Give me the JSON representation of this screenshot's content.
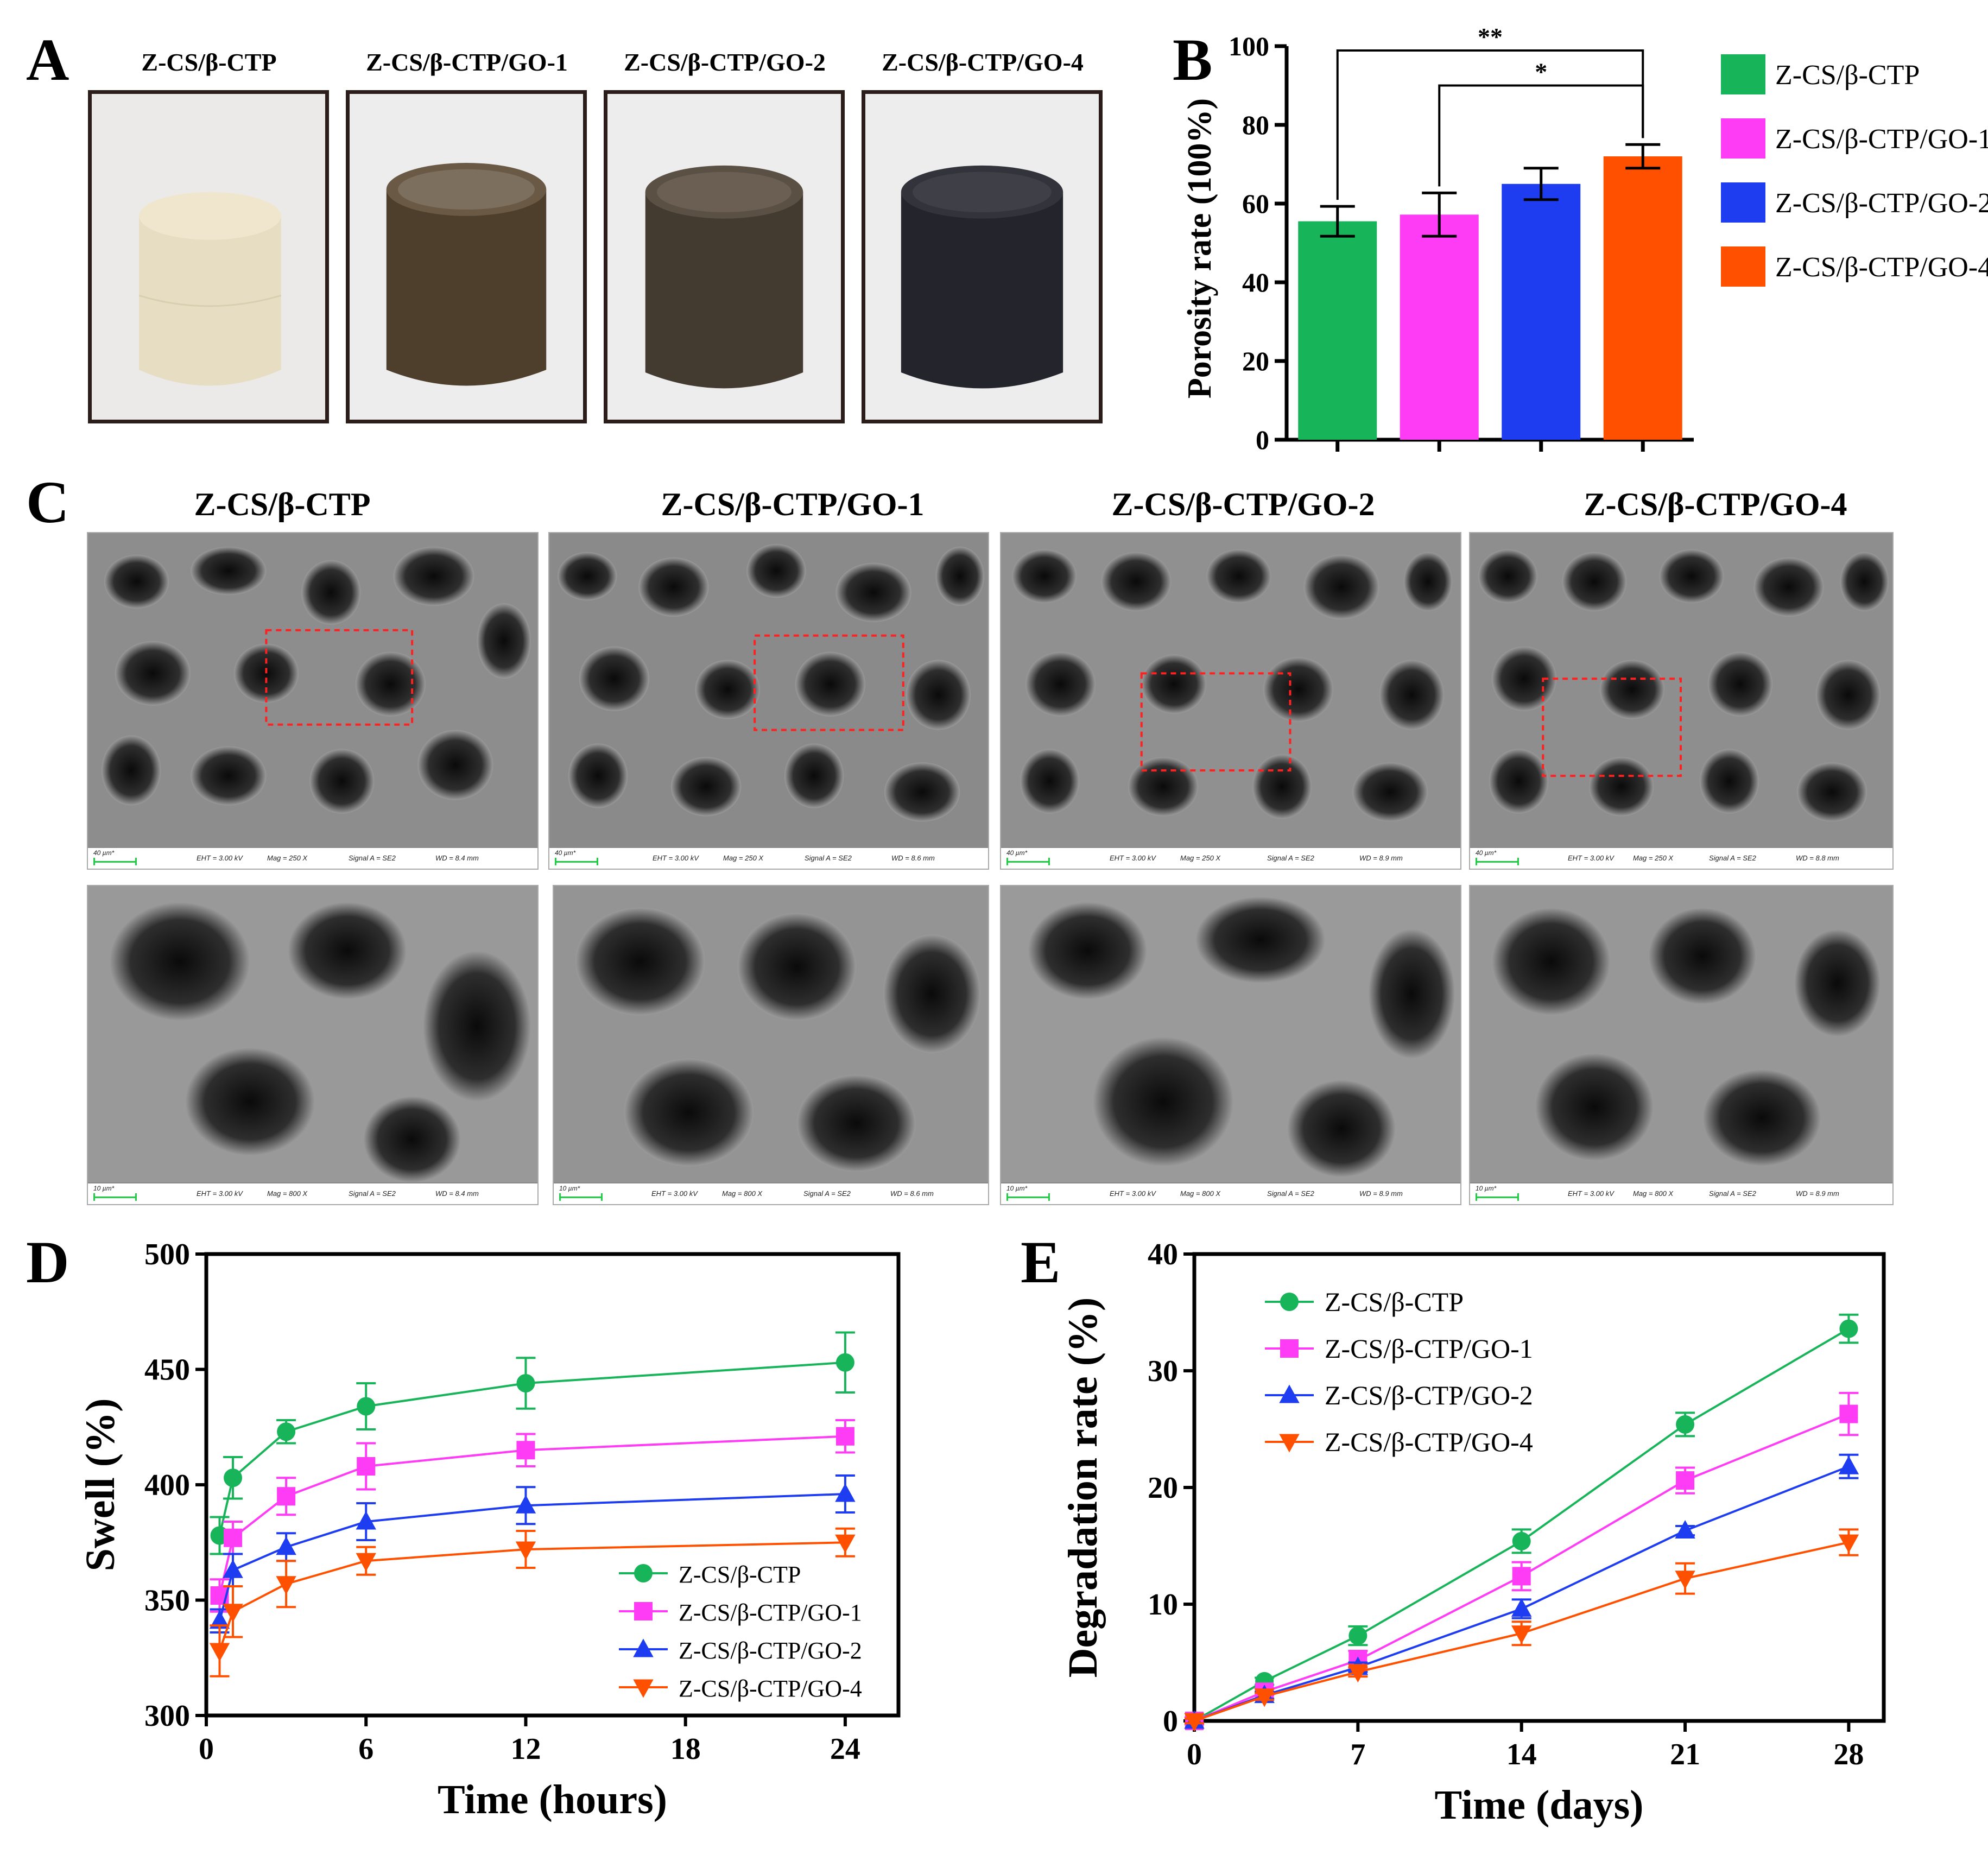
{
  "panels": {
    "a": "A",
    "b": "B",
    "c": "C",
    "d": "D",
    "e": "E"
  },
  "groups": [
    "Z-CS/β-CTP",
    "Z-CS/β-CTP/GO-1",
    "Z-CS/β-CTP/GO-2",
    "Z-CS/β-CTP/GO-4"
  ],
  "colors": {
    "g0": "#18b45a",
    "g1": "#ff3cf5",
    "g2": "#1e3cf0",
    "g3": "#ff5000"
  },
  "sem_top": [
    {
      "scale": "40 µm*",
      "eht": "EHT = 3.00 kV",
      "mag": "Mag =    250 X",
      "signal": "Signal A = SE2",
      "wd": "WD =  8.4 mm"
    },
    {
      "scale": "40 µm*",
      "eht": "EHT = 3.00 kV",
      "mag": "Mag =    250 X",
      "signal": "Signal A = SE2",
      "wd": "WD =  8.6 mm"
    },
    {
      "scale": "40 µm*",
      "eht": "EHT = 3.00 kV",
      "mag": "Mag =    250 X",
      "signal": "Signal A = SE2",
      "wd": "WD =  8.9 mm"
    },
    {
      "scale": "40 µm*",
      "eht": "EHT = 3.00 kV",
      "mag": "Mag =    250 X",
      "signal": "Signal A = SE2",
      "wd": "WD =  8.8 mm"
    }
  ],
  "sem_bottom": [
    {
      "scale": "10 µm*",
      "eht": "EHT = 3.00 kV",
      "mag": "Mag =    800 X",
      "signal": "Signal A = SE2",
      "wd": "WD =  8.4 mm"
    },
    {
      "scale": "10 µm*",
      "eht": "EHT = 3.00 kV",
      "mag": "Mag =    800 X",
      "signal": "Signal A = SE2",
      "wd": "WD =  8.6 mm"
    },
    {
      "scale": "10 µm*",
      "eht": "EHT = 3.00 kV",
      "mag": "Mag =    800 X",
      "signal": "Signal A = SE2",
      "wd": "WD =  8.9 mm"
    },
    {
      "scale": "10 µm*",
      "eht": "EHT = 3.00 kV",
      "mag": "Mag =    800 X",
      "signal": "Signal A = SE2",
      "wd": "WD =  8.9 mm"
    }
  ],
  "chart_data": [
    {
      "id": "B",
      "type": "bar",
      "categories": [
        "Z-CS/β-CTP",
        "Z-CS/β-CTP/GO-1",
        "Z-CS/β-CTP/GO-2",
        "Z-CS/β-CTP/GO-4"
      ],
      "values": [
        55.5,
        57.2,
        65.0,
        72.0
      ],
      "errors": [
        3.8,
        5.5,
        4.0,
        3.0
      ],
      "ylabel": "Porosity rate (100%)",
      "ylim": [
        0,
        100
      ],
      "yticks": [
        0,
        20,
        40,
        60,
        80,
        100
      ],
      "significance": [
        {
          "from": 0,
          "to": 3,
          "label": "**"
        },
        {
          "from": 1,
          "to": 3,
          "label": "*"
        }
      ],
      "legend": "right"
    },
    {
      "id": "D",
      "type": "line",
      "x": [
        0.5,
        1,
        3,
        6,
        12,
        24
      ],
      "series": [
        {
          "name": "Z-CS/β-CTP",
          "values": [
            378,
            403,
            423,
            434,
            444,
            453
          ],
          "errors": [
            8,
            9,
            5,
            10,
            11,
            13
          ],
          "marker": "circle"
        },
        {
          "name": "Z-CS/β-CTP/GO-1",
          "values": [
            352,
            377,
            395,
            408,
            415,
            421
          ],
          "errors": [
            7,
            7,
            8,
            10,
            7,
            7
          ],
          "marker": "square"
        },
        {
          "name": "Z-CS/β-CTP/GO-2",
          "values": [
            341,
            363,
            373,
            384,
            391,
            396
          ],
          "errors": [
            5,
            7,
            6,
            8,
            8,
            8
          ],
          "marker": "triangle-up"
        },
        {
          "name": "Z-CS/β-CTP/GO-4",
          "values": [
            328,
            345,
            357,
            367,
            372,
            375
          ],
          "errors": [
            11,
            11,
            10,
            6,
            8,
            6
          ],
          "marker": "triangle-down"
        }
      ],
      "xlabel": "Time (hours)",
      "ylabel": "Swell (%)",
      "xlim": [
        0,
        26
      ],
      "ylim": [
        300,
        500
      ],
      "xticks": [
        0,
        6,
        12,
        18,
        24
      ],
      "yticks": [
        300,
        350,
        400,
        450,
        500
      ],
      "legend": "bottom-right"
    },
    {
      "id": "E",
      "type": "line",
      "x": [
        0,
        3,
        7,
        14,
        21,
        28
      ],
      "series": [
        {
          "name": "Z-CS/β-CTP",
          "values": [
            0,
            3.4,
            7.3,
            15.4,
            25.4,
            33.6
          ],
          "errors": [
            0.3,
            0.3,
            0.8,
            1.0,
            1.0,
            1.2
          ],
          "marker": "circle"
        },
        {
          "name": "Z-CS/β-CTP/GO-1",
          "values": [
            0,
            2.5,
            5.2,
            12.4,
            20.6,
            26.3
          ],
          "errors": [
            0.3,
            0.3,
            0.8,
            1.2,
            1.1,
            1.8
          ],
          "marker": "square"
        },
        {
          "name": "Z-CS/β-CTP/GO-2",
          "values": [
            0,
            2.2,
            4.6,
            9.6,
            16.3,
            21.8
          ],
          "errors": [
            0.2,
            0.3,
            0.4,
            0.8,
            0.4,
            1.0
          ],
          "marker": "triangle-up"
        },
        {
          "name": "Z-CS/β-CTP/GO-4",
          "values": [
            0,
            2.1,
            4.2,
            7.5,
            12.2,
            15.3
          ],
          "errors": [
            0.2,
            0.3,
            0.4,
            1.0,
            1.3,
            1.1
          ],
          "marker": "triangle-down"
        }
      ],
      "xlabel": "Time (days)",
      "ylabel": "Degradation rate (%)",
      "xlim": [
        0,
        29.5
      ],
      "ylim": [
        0,
        40
      ],
      "xticks": [
        0,
        7,
        14,
        21,
        28
      ],
      "yticks": [
        0,
        10,
        20,
        30,
        40
      ],
      "legend": "top-left"
    }
  ]
}
